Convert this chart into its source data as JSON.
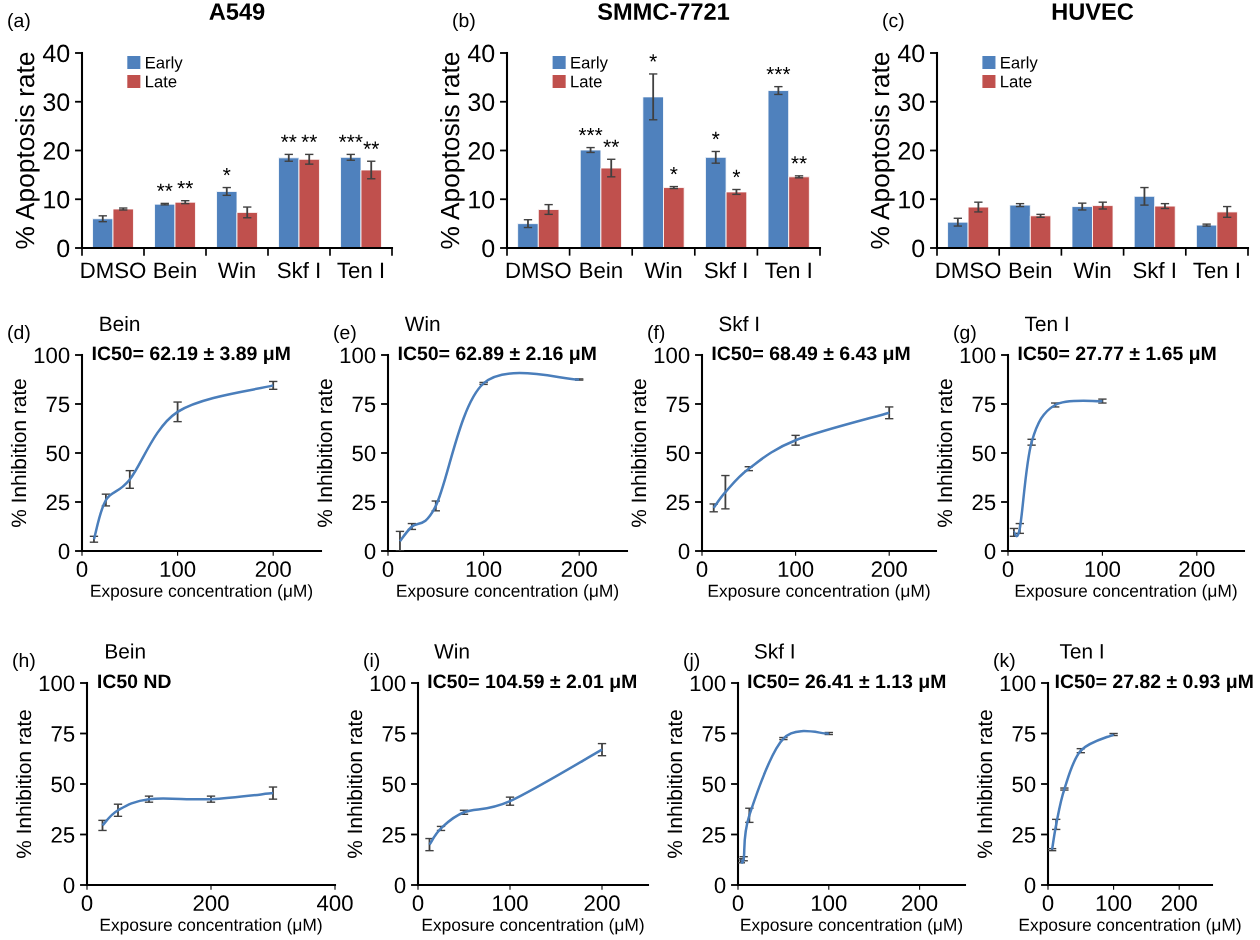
{
  "chart_data": [
    {
      "type": "bar",
      "title": "A549",
      "annotations": [
        "(a)"
      ],
      "ylabel": "% Apoptosis rate",
      "categories": [
        "DMSO",
        "Bein",
        "Win",
        "Skf I",
        "Ten I"
      ],
      "ylim": [
        0,
        40
      ],
      "yticks": [
        0,
        10,
        20,
        30,
        40
      ],
      "legend": "top left",
      "series": [
        {
          "name": "Early",
          "color": "#4f81bd",
          "values": [
            6,
            9,
            11.6,
            18.5,
            18.6
          ],
          "errors": [
            0.6,
            0.15,
            0.8,
            0.7,
            0.6
          ],
          "value_labels": [
            null,
            "**",
            "*",
            "**",
            "***"
          ]
        },
        {
          "name": "Late",
          "color": "#c0504d",
          "values": [
            8,
            9.4,
            7.3,
            18.2,
            16
          ],
          "errors": [
            0.2,
            0.3,
            1.1,
            1,
            1.8
          ],
          "value_labels": [
            null,
            "**",
            null,
            "**",
            "**"
          ]
        }
      ]
    },
    {
      "type": "bar",
      "title": "SMMC-7721",
      "annotations": [
        "(b)"
      ],
      "ylabel": "% Apoptosis rate",
      "categories": [
        "DMSO",
        "Bein",
        "Win",
        "Skf I",
        "Ten I"
      ],
      "ylim": [
        0,
        40
      ],
      "yticks": [
        0,
        10,
        20,
        30,
        40
      ],
      "legend": "top left",
      "series": [
        {
          "name": "Early",
          "color": "#4f81bd",
          "values": [
            5,
            20.1,
            31,
            18.6,
            32.3
          ],
          "errors": [
            0.8,
            0.5,
            4.7,
            1.2,
            0.8
          ],
          "value_labels": [
            null,
            "***",
            "*",
            "*",
            "***"
          ]
        },
        {
          "name": "Late",
          "color": "#c0504d",
          "values": [
            7.9,
            16.4,
            12.4,
            11.5,
            14.6
          ],
          "errors": [
            1,
            1.8,
            0.2,
            0.5,
            0.2
          ],
          "value_labels": [
            null,
            "**",
            "*",
            "*",
            "**"
          ]
        }
      ]
    },
    {
      "type": "bar",
      "title": "HUVEC",
      "annotations": [
        "(c)"
      ],
      "ylabel": "% Apoptosis rate",
      "categories": [
        "DMSO",
        "Bein",
        "Win",
        "Skf I",
        "Ten I"
      ],
      "ylim": [
        0,
        40
      ],
      "yticks": [
        0,
        10,
        20,
        30,
        40
      ],
      "legend": "top left",
      "series": [
        {
          "name": "Early",
          "color": "#4f81bd",
          "values": [
            5.3,
            8.8,
            8.5,
            10.6,
            4.7
          ],
          "errors": [
            0.8,
            0.3,
            0.7,
            1.8,
            0.2
          ]
        },
        {
          "name": "Late",
          "color": "#c0504d",
          "values": [
            8.4,
            6.6,
            8.7,
            8.6,
            7.4
          ],
          "errors": [
            1,
            0.3,
            0.7,
            0.5,
            1.1
          ]
        }
      ]
    },
    {
      "type": "line",
      "title": "Bein",
      "subtitle": "IC50= 62.19 ± 3.89 μM",
      "annotations": [
        "(d)"
      ],
      "xlabel": "Exposure concentration (μM)",
      "ylabel": "% Inhibition rate",
      "xlim": [
        0,
        250
      ],
      "xticks": [
        0,
        100,
        200
      ],
      "ylim": [
        0,
        100
      ],
      "yticks": [
        0,
        25,
        50,
        75,
        100
      ],
      "marker": "none",
      "series": [
        {
          "color": "#4a7ebb",
          "x": [
            12.5,
            25,
            50,
            100,
            200
          ],
          "values": [
            6,
            26,
            36.5,
            71,
            84.5
          ],
          "errors": [
            1.5,
            3,
            4.5,
            5,
            2
          ]
        }
      ]
    },
    {
      "type": "line",
      "title": "Win",
      "subtitle": "IC50= 62.89 ± 2.16 μM",
      "annotations": [
        "(e)"
      ],
      "xlabel": "Exposure concentration (μM)",
      "ylabel": "% Inhibition rate",
      "xlim": [
        0,
        250
      ],
      "xticks": [
        0,
        100,
        200
      ],
      "ylim": [
        0,
        100
      ],
      "yticks": [
        0,
        25,
        50,
        75,
        100
      ],
      "marker": "none",
      "series": [
        {
          "color": "#4a7ebb",
          "x": [
            12.5,
            25,
            50,
            100,
            200
          ],
          "values": [
            5,
            12.5,
            23,
            85.5,
            87.5
          ],
          "errors": [
            5,
            1.5,
            2.5,
            0.5,
            0.3
          ]
        }
      ]
    },
    {
      "type": "line",
      "title": "Skf I",
      "subtitle": "IC50= 68.49 ± 6.43 μM",
      "annotations": [
        "(f)"
      ],
      "xlabel": "Exposure concentration (μM)",
      "ylabel": "% Inhibition rate",
      "xlim": [
        0,
        250
      ],
      "xticks": [
        0,
        100,
        200
      ],
      "ylim": [
        0,
        100
      ],
      "yticks": [
        0,
        25,
        50,
        75,
        100
      ],
      "marker": "none",
      "series": [
        {
          "color": "#4a7ebb",
          "x": [
            12.5,
            25,
            50,
            100,
            200
          ],
          "values": [
            22,
            30,
            42,
            56.5,
            70.5
          ],
          "errors": [
            2,
            8.5,
            1,
            2.5,
            3
          ]
        }
      ]
    },
    {
      "type": "line",
      "title": "Ten I",
      "subtitle": "IC50= 27.77 ± 1.65 μM",
      "annotations": [
        "(g)"
      ],
      "xlabel": "Exposure concentration (μM)",
      "ylabel": "% Inhibition rate",
      "xlim": [
        0,
        250
      ],
      "xticks": [
        0,
        100,
        200
      ],
      "ylim": [
        0,
        100
      ],
      "yticks": [
        0,
        25,
        50,
        75,
        100
      ],
      "marker": "none",
      "series": [
        {
          "color": "#4a7ebb",
          "x": [
            6.25,
            12.5,
            25,
            50,
            100
          ],
          "values": [
            9.5,
            11.5,
            55.5,
            74.5,
            76.5
          ],
          "errors": [
            2,
            2.5,
            1.5,
            1,
            1
          ]
        }
      ]
    },
    {
      "type": "line",
      "title": "Bein",
      "subtitle": "IC50 ND",
      "annotations": [
        "(h)"
      ],
      "xlabel": "Exposure concentration (μM)",
      "ylabel": "% Inhibition rate",
      "xlim": [
        0,
        400
      ],
      "xticks": [
        0,
        200,
        400
      ],
      "ylim": [
        0,
        100
      ],
      "yticks": [
        0,
        25,
        50,
        75,
        100
      ],
      "marker": "none",
      "series": [
        {
          "color": "#4a7ebb",
          "x": [
            25,
            50,
            100,
            200,
            300
          ],
          "values": [
            29.5,
            37,
            42.5,
            42.5,
            45.5
          ],
          "errors": [
            2.5,
            3,
            1.5,
            1.5,
            3
          ]
        }
      ]
    },
    {
      "type": "line",
      "title": "Win",
      "subtitle": "IC50= 104.59 ± 2.01 μM",
      "annotations": [
        "(i)"
      ],
      "xlabel": "Exposure concentration (μM)",
      "ylabel": "% Inhibition rate",
      "xlim": [
        0,
        250
      ],
      "xticks": [
        0,
        100,
        200
      ],
      "ylim": [
        0,
        100
      ],
      "yticks": [
        0,
        25,
        50,
        75,
        100
      ],
      "marker": "none",
      "series": [
        {
          "color": "#4a7ebb",
          "x": [
            12.5,
            25,
            50,
            100,
            200
          ],
          "values": [
            20,
            28,
            36,
            41.5,
            67
          ],
          "errors": [
            3,
            1,
            1,
            2,
            3
          ]
        }
      ]
    },
    {
      "type": "line",
      "title": "Skf I",
      "subtitle": "IC50= 26.41 ± 1.13 μM",
      "annotations": [
        "(j)"
      ],
      "xlabel": "Exposure concentration (μM)",
      "ylabel": "% Inhibition rate",
      "xlim": [
        0,
        250
      ],
      "xticks": [
        0,
        100,
        200
      ],
      "ylim": [
        0,
        100
      ],
      "yticks": [
        0,
        25,
        50,
        75,
        100
      ],
      "marker": "none",
      "series": [
        {
          "color": "#4a7ebb",
          "x": [
            3.125,
            6.25,
            12.5,
            50,
            100
          ],
          "values": [
            12,
            13,
            34.5,
            72.5,
            75
          ],
          "errors": [
            1,
            1,
            3.5,
            0.5,
            0.5
          ]
        }
      ]
    },
    {
      "type": "line",
      "title": "Ten I",
      "subtitle": "IC50= 27.82 ± 0.93 μM",
      "annotations": [
        "(k)"
      ],
      "xlabel": "Exposure concentration (μM)",
      "ylabel": "% Inhibition rate",
      "xlim": [
        0,
        250
      ],
      "xticks": [
        0,
        100,
        200
      ],
      "ylim": [
        0,
        100
      ],
      "yticks": [
        0,
        25,
        50,
        75,
        100
      ],
      "marker": "none",
      "series": [
        {
          "color": "#4a7ebb",
          "x": [
            6.25,
            12.5,
            25,
            50,
            100
          ],
          "values": [
            17.5,
            30,
            47.5,
            66.5,
            74.5
          ],
          "errors": [
            0.5,
            2.5,
            0.5,
            1,
            0.5
          ]
        }
      ]
    }
  ]
}
